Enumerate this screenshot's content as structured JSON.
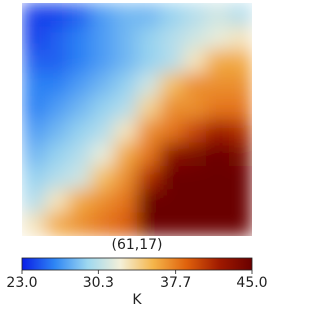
{
  "chart_data": {
    "type": "heatmap",
    "title": "(61,17)",
    "values": [
      [
        24,
        24,
        25,
        27,
        28,
        28,
        29,
        30,
        31,
        30
      ],
      [
        24,
        25,
        26,
        27,
        28,
        29,
        30,
        31,
        32,
        33
      ],
      [
        25,
        25,
        26,
        27,
        28,
        29,
        30,
        33,
        36,
        36
      ],
      [
        26,
        26,
        27,
        28,
        29,
        31,
        35,
        37,
        37,
        37
      ],
      [
        26,
        27,
        28,
        29,
        30,
        34,
        37,
        37,
        38,
        38
      ],
      [
        27,
        28,
        29,
        30,
        33,
        37,
        38,
        40,
        42,
        41
      ],
      [
        28,
        29,
        30,
        32,
        36,
        38,
        43,
        44,
        45,
        44
      ],
      [
        29,
        30,
        31,
        35,
        37,
        41,
        45,
        45,
        45,
        45
      ],
      [
        30,
        33,
        36,
        37,
        38,
        45,
        45,
        45,
        45,
        45
      ],
      [
        33,
        36,
        37,
        38,
        39,
        45,
        45,
        45,
        45,
        45
      ]
    ],
    "colormap": [
      "#0a1ee6",
      "#2e86f5",
      "#9ed8f0",
      "#f4f0d8",
      "#f5b54a",
      "#e0620c",
      "#a01a00",
      "#6a0000"
    ],
    "zlim": [
      23,
      45
    ],
    "zticks": [
      {
        "value": 23,
        "label": "23.0"
      },
      30.3,
      37.7,
      {
        "value": 45,
        "label": "45.0"
      }
    ],
    "colorbar_label": "K"
  }
}
